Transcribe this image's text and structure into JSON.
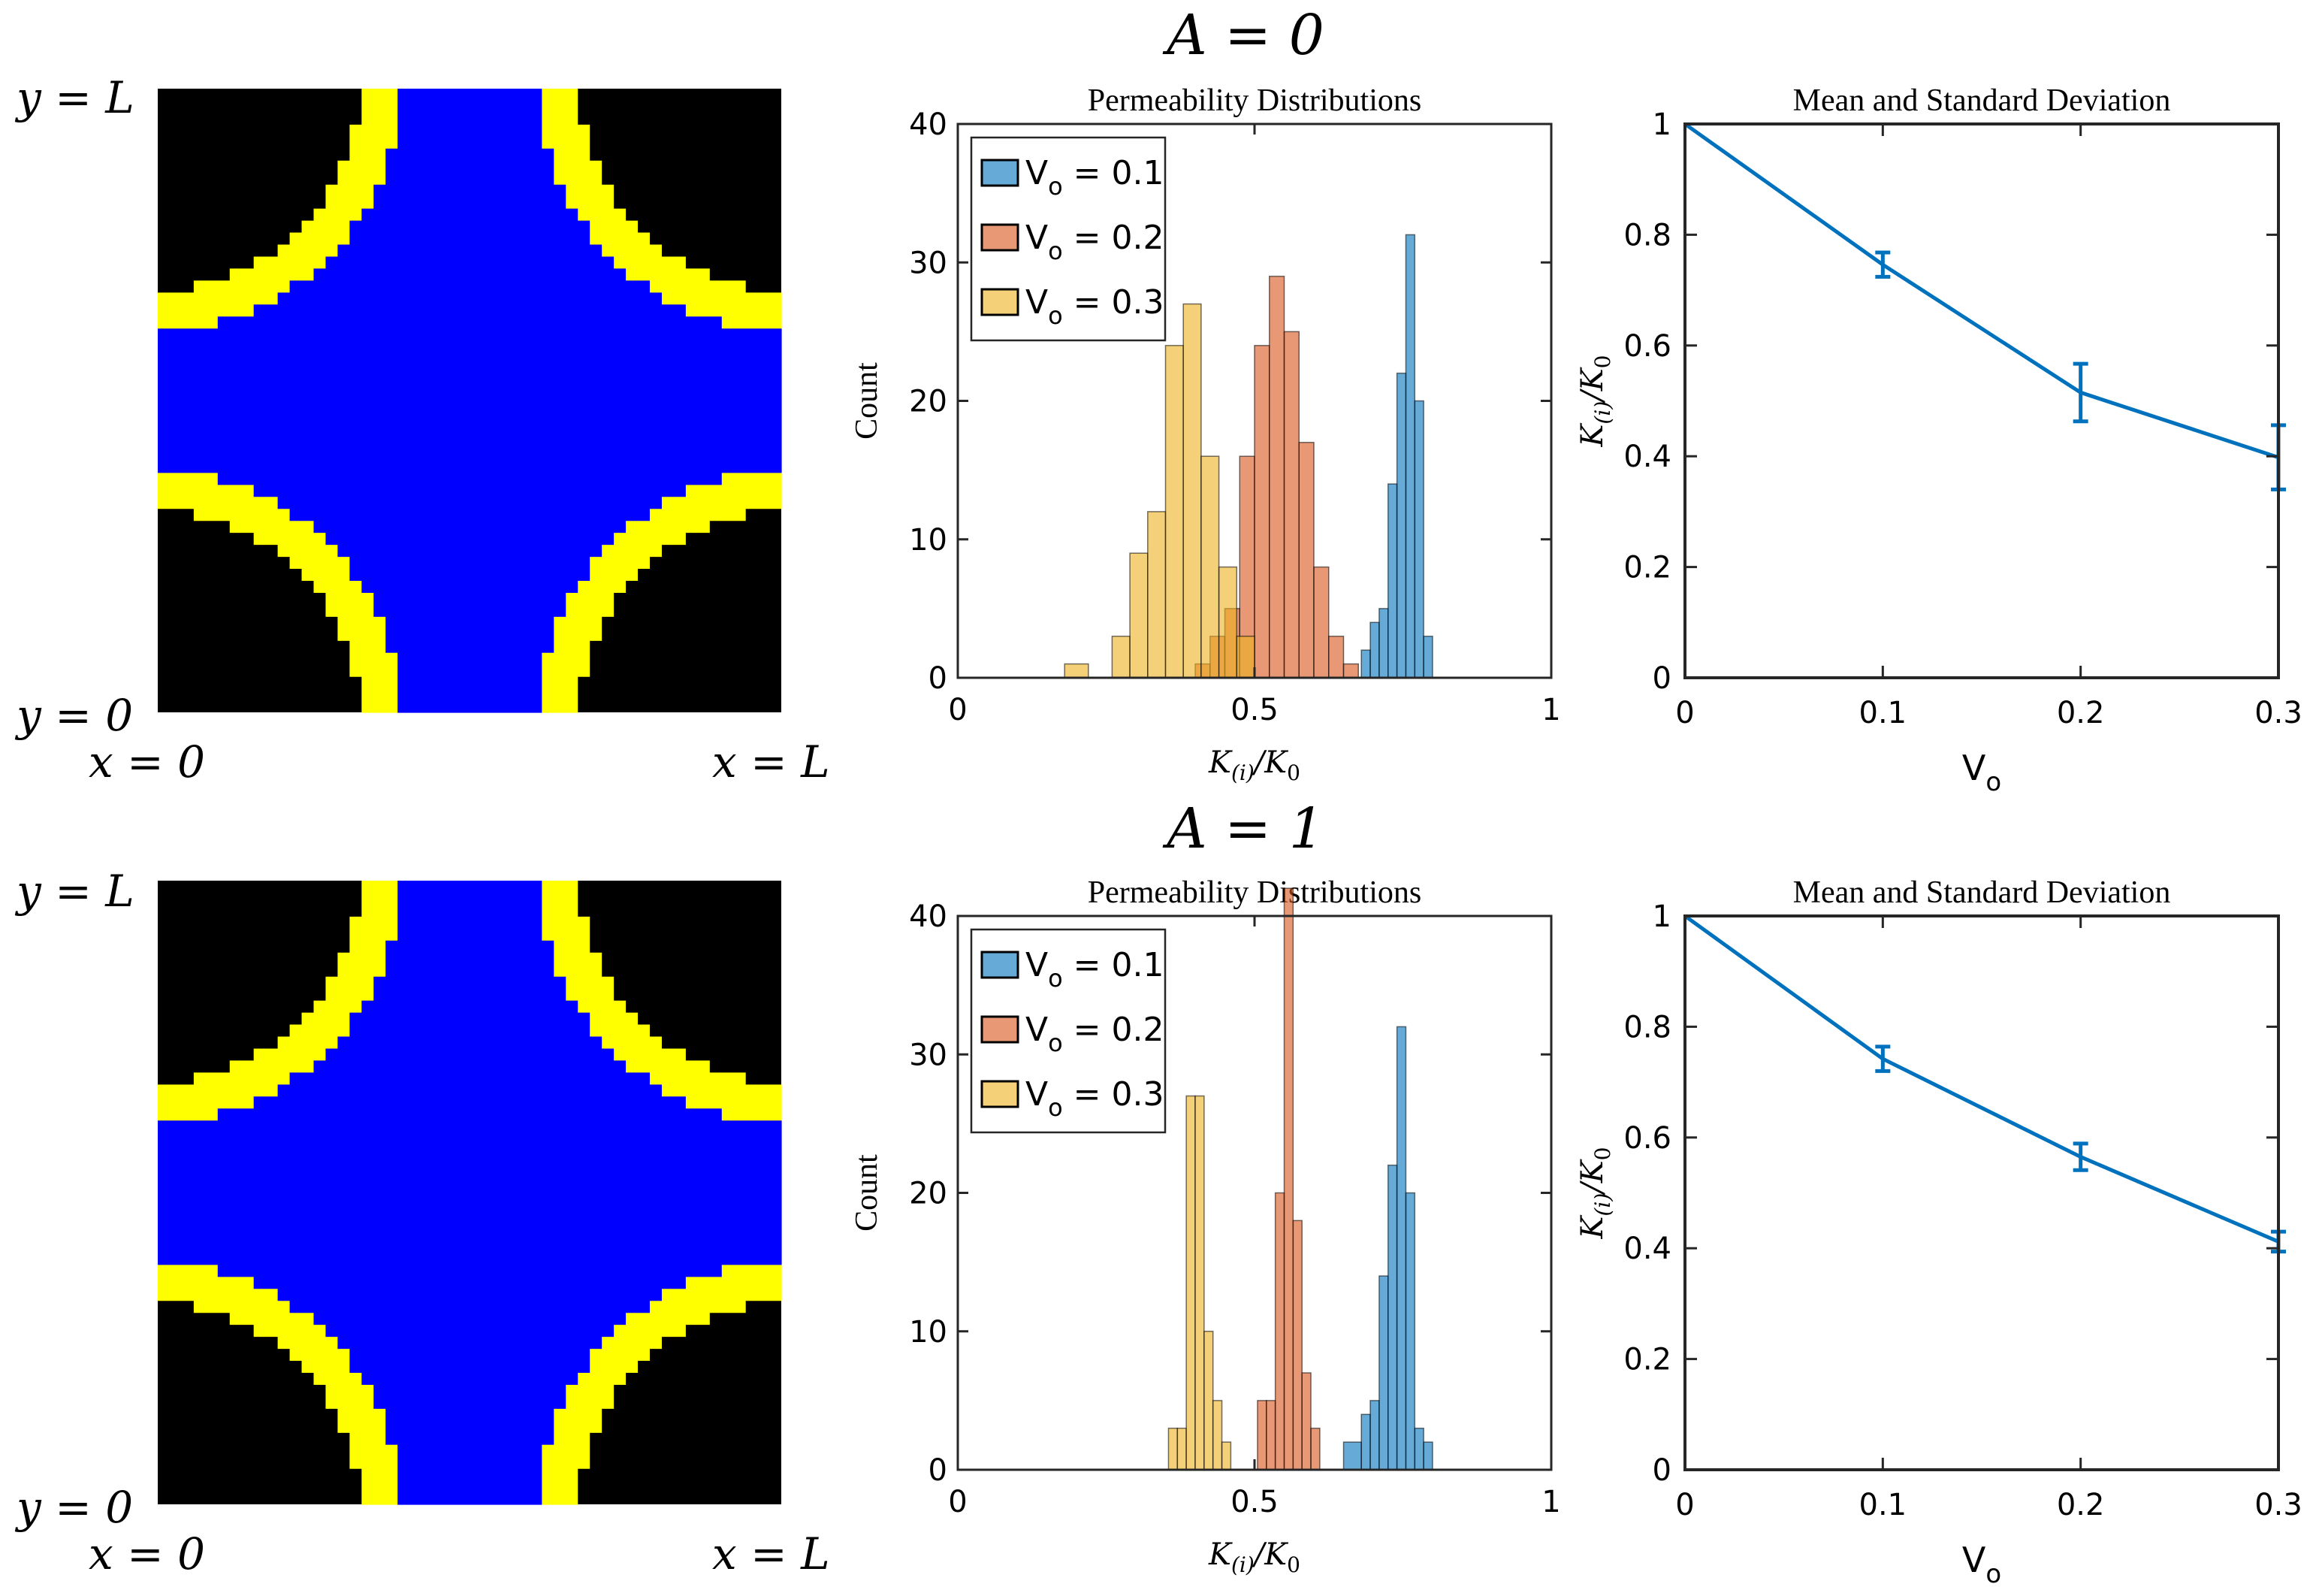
{
  "figure": {
    "rows": [
      {
        "title": "A = 0"
      },
      {
        "title": "A = 1"
      }
    ]
  },
  "geometry_panels": [
    {
      "labels": {
        "y_top": "y = L",
        "y_bottom": "y = 0",
        "x_left": "x = 0",
        "x_right": "x = L"
      },
      "colors": {
        "solid": "#000000",
        "coating": "#ffff00",
        "pore": "#0000ff"
      }
    },
    {
      "labels": {
        "y_top": "y = L",
        "y_bottom": "y = 0",
        "x_left": "x = 0",
        "x_right": "x = L"
      },
      "colors": {
        "solid": "#000000",
        "coating": "#ffff00",
        "pore": "#0000ff"
      }
    }
  ],
  "chart_data": [
    {
      "type": "bar",
      "subtype": "histogram",
      "title": "Permeability Distributions",
      "xlabel": "K_(i)/K_0",
      "ylabel": "Count",
      "xlim": [
        0,
        1
      ],
      "ylim": [
        0,
        40
      ],
      "xticks": [
        "0",
        "0.5",
        "1"
      ],
      "yticks": [
        "0",
        "10",
        "20",
        "30",
        "40"
      ],
      "legend_position": "top-left",
      "series": [
        {
          "name": "V_o = 0.1",
          "label_main": "V",
          "label_sub": "o",
          "label_rest": " = 0.1",
          "color": "#0072bd",
          "edges": [
            0.68,
            0.695,
            0.71,
            0.725,
            0.74,
            0.755,
            0.77,
            0.785,
            0.8
          ],
          "counts": [
            2,
            4,
            5,
            14,
            22,
            32,
            20,
            3
          ]
        },
        {
          "name": "V_o = 0.2",
          "label_main": "V",
          "label_sub": "o",
          "label_rest": " = 0.2",
          "color": "#d95319",
          "edges": [
            0.4,
            0.425,
            0.45,
            0.475,
            0.5,
            0.525,
            0.55,
            0.575,
            0.6,
            0.625,
            0.65,
            0.675
          ],
          "counts": [
            1,
            3,
            5,
            16,
            24,
            29,
            25,
            17,
            8,
            3,
            1
          ]
        },
        {
          "name": "V_o = 0.3",
          "label_main": "V",
          "label_sub": "o",
          "label_rest": " = 0.3",
          "color": "#edb120",
          "edges": [
            0.18,
            0.22,
            0.26,
            0.29,
            0.32,
            0.35,
            0.38,
            0.41,
            0.44,
            0.47,
            0.5
          ],
          "counts": [
            1,
            0,
            3,
            9,
            12,
            24,
            27,
            16,
            8,
            3
          ]
        }
      ]
    },
    {
      "type": "line",
      "title": "Mean and Standard Deviation",
      "xlabel": "V_o",
      "ylabel": "K_(i)/K_0",
      "xlim": [
        0,
        0.3
      ],
      "ylim": [
        0,
        1
      ],
      "xticks": [
        "0",
        "0.1",
        "0.2",
        "0.3"
      ],
      "yticks": [
        "0",
        "0.2",
        "0.4",
        "0.6",
        "0.8",
        "1"
      ],
      "x": [
        0,
        0.1,
        0.2,
        0.3
      ],
      "y": [
        1.0,
        0.746,
        0.515,
        0.398
      ],
      "err": [
        0.0,
        0.022,
        0.052,
        0.058
      ],
      "color": "#0072bd"
    },
    {
      "type": "bar",
      "subtype": "histogram",
      "title": "Permeability Distributions",
      "xlabel": "K_(i)/K_0",
      "ylabel": "Count",
      "xlim": [
        0,
        1
      ],
      "ylim": [
        0,
        40
      ],
      "xticks": [
        "0",
        "0.5",
        "1"
      ],
      "yticks": [
        "0",
        "10",
        "20",
        "30",
        "40"
      ],
      "legend_position": "top-left",
      "series": [
        {
          "name": "V_o = 0.1",
          "label_main": "V",
          "label_sub": "o",
          "label_rest": " = 0.1",
          "color": "#0072bd",
          "edges": [
            0.65,
            0.68,
            0.695,
            0.71,
            0.725,
            0.74,
            0.755,
            0.77,
            0.785,
            0.8
          ],
          "counts": [
            2,
            4,
            5,
            14,
            22,
            32,
            20,
            3,
            2
          ]
        },
        {
          "name": "V_o = 0.2",
          "label_main": "V",
          "label_sub": "o",
          "label_rest": " = 0.2",
          "color": "#d95319",
          "edges": [
            0.505,
            0.52,
            0.535,
            0.55,
            0.565,
            0.58,
            0.595,
            0.61,
            0.625
          ],
          "counts": [
            5,
            5,
            20,
            42,
            18,
            7,
            3,
            0
          ]
        },
        {
          "name": "V_o = 0.3",
          "label_main": "V",
          "label_sub": "o",
          "label_rest": " = 0.3",
          "color": "#edb120",
          "edges": [
            0.355,
            0.37,
            0.385,
            0.4,
            0.415,
            0.43,
            0.445,
            0.46
          ],
          "counts": [
            3,
            3,
            27,
            27,
            10,
            5,
            2
          ]
        }
      ]
    },
    {
      "type": "line",
      "title": "Mean and Standard Deviation",
      "xlabel": "V_o",
      "ylabel": "K_(i)/K_0",
      "xlim": [
        0,
        0.3
      ],
      "ylim": [
        0,
        1
      ],
      "xticks": [
        "0",
        "0.1",
        "0.2",
        "0.3"
      ],
      "yticks": [
        "0",
        "0.2",
        "0.4",
        "0.6",
        "0.8",
        "1"
      ],
      "x": [
        0,
        0.1,
        0.2,
        0.3
      ],
      "y": [
        1.0,
        0.742,
        0.565,
        0.412
      ],
      "err": [
        0.0,
        0.022,
        0.024,
        0.018
      ],
      "color": "#0072bd"
    }
  ]
}
